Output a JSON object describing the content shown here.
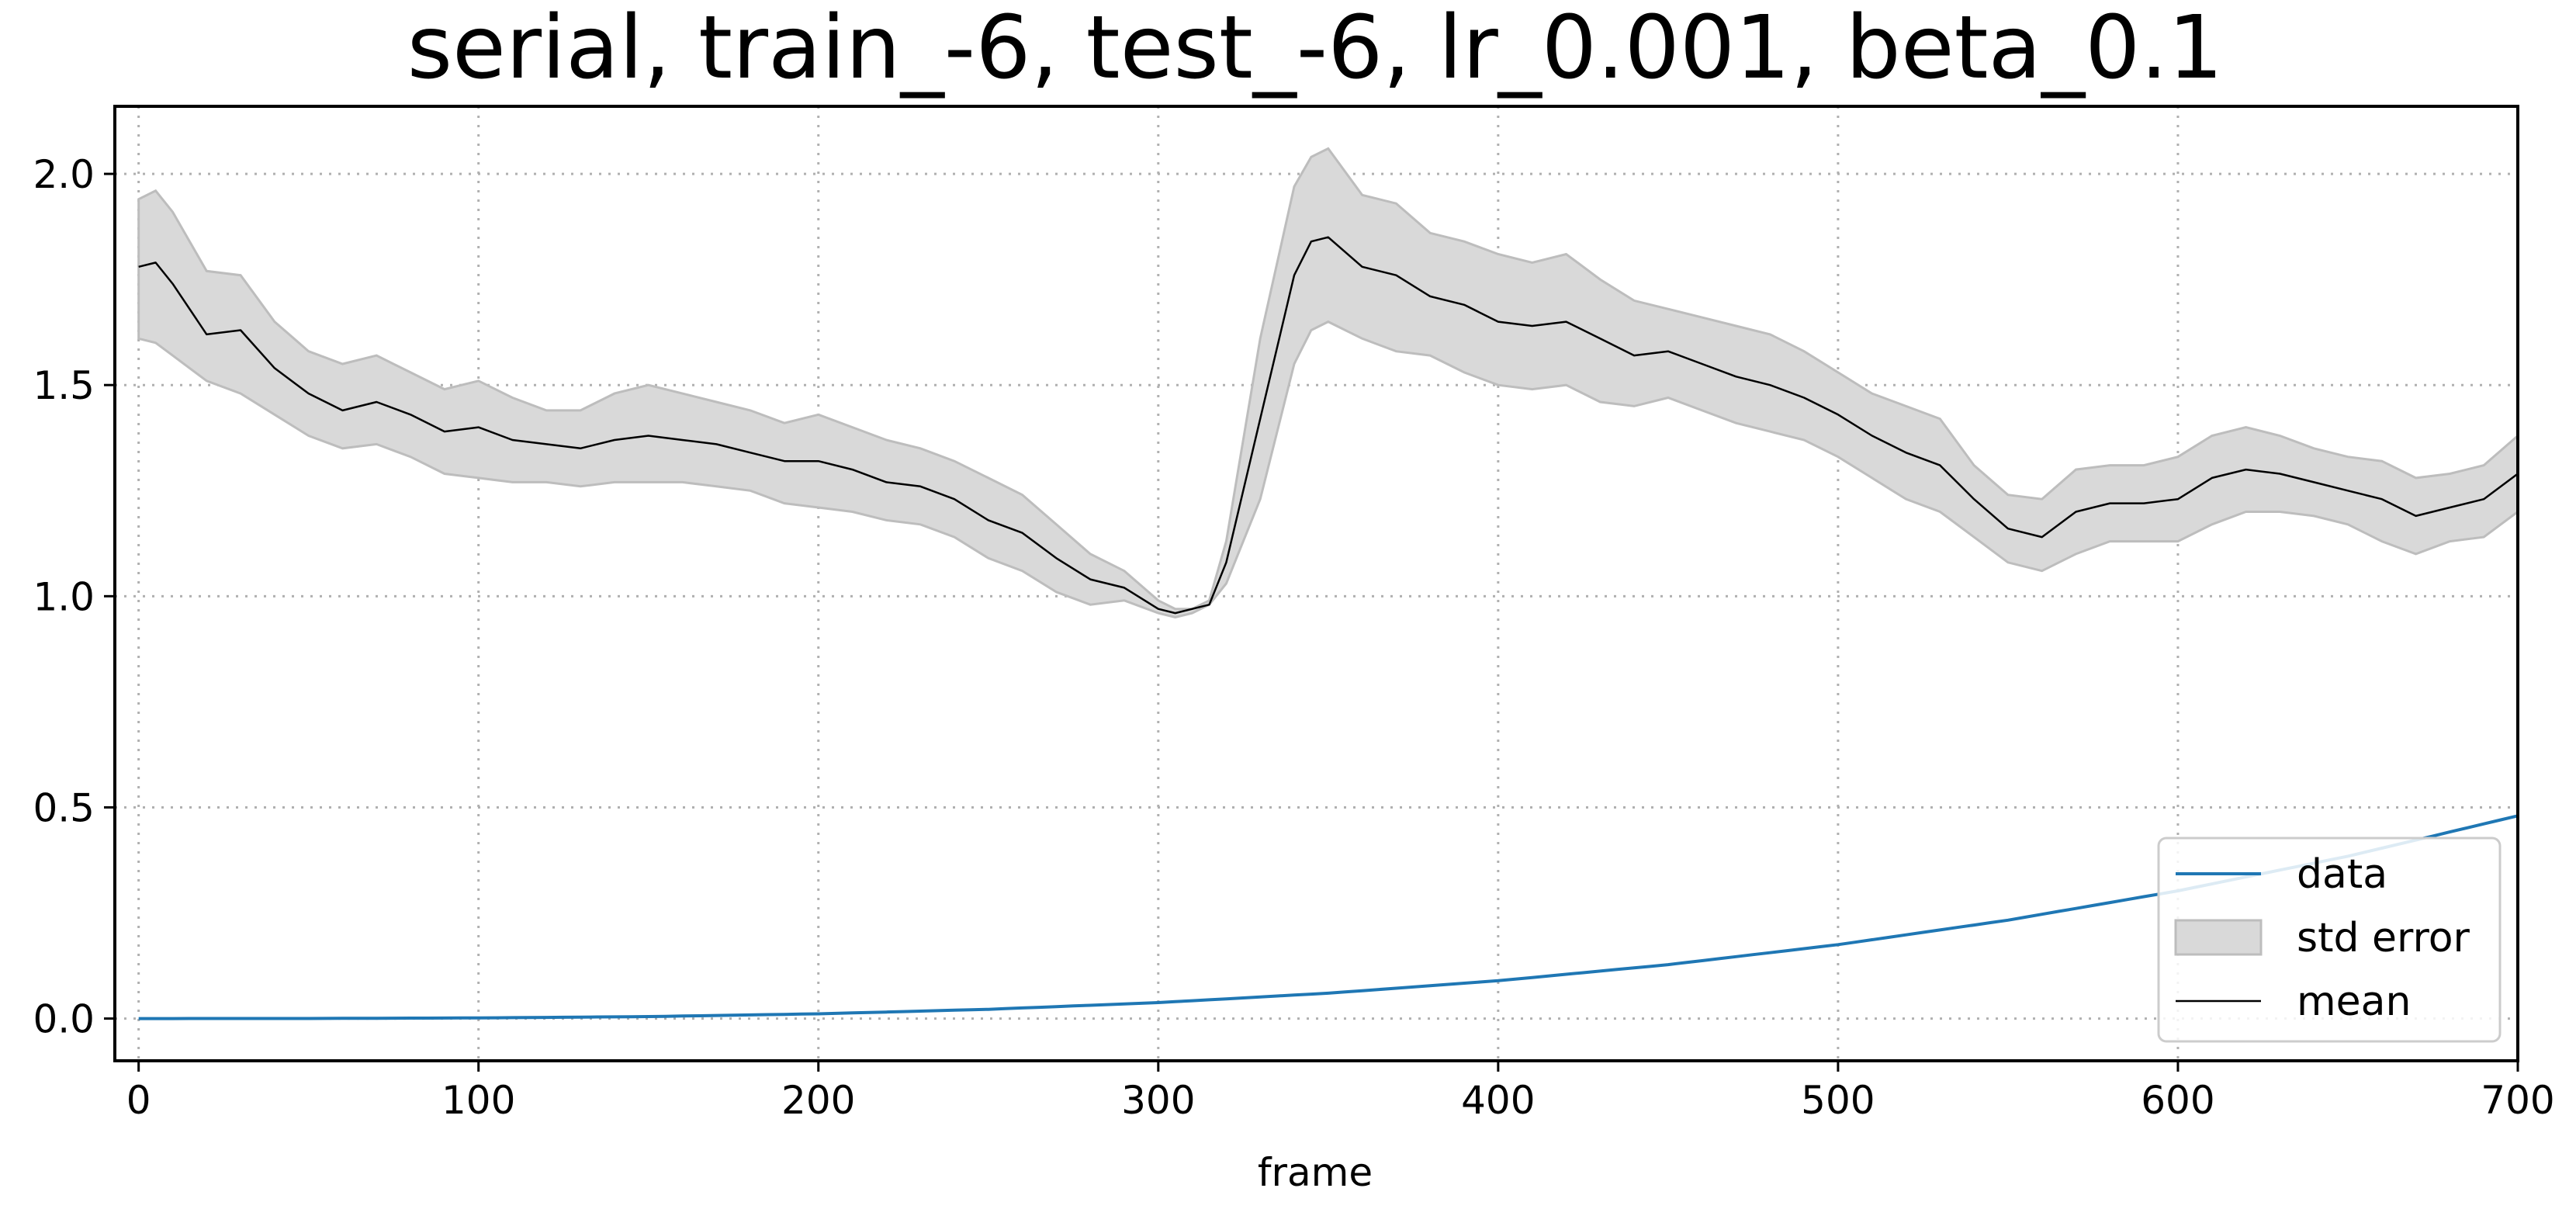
{
  "chart_data": {
    "type": "line",
    "title": "serial, train_-6, test_-6, lr_0.001, beta_0.1",
    "xlabel": "frame",
    "ylabel": "",
    "xlim": [
      -7,
      700
    ],
    "ylim": [
      -0.1,
      2.16
    ],
    "xticks": [
      0,
      100,
      200,
      300,
      400,
      500,
      600,
      700
    ],
    "yticks": [
      0.0,
      0.5,
      1.0,
      1.5,
      2.0
    ],
    "xtick_labels": [
      "0",
      "100",
      "200",
      "300",
      "400",
      "500",
      "600",
      "700"
    ],
    "ytick_labels": [
      "0.0",
      "0.5",
      "1.0",
      "1.5",
      "2.0"
    ],
    "grid": true,
    "legend_position": "lower-right",
    "series": [
      {
        "name": "data",
        "kind": "line",
        "color": "#1f77b4",
        "x": [
          0,
          50,
          100,
          150,
          200,
          250,
          300,
          350,
          400,
          450,
          500,
          550,
          600,
          650,
          700
        ],
        "y": [
          0.0,
          0.0002,
          0.0015,
          0.0047,
          0.0112,
          0.0219,
          0.0378,
          0.06,
          0.0896,
          0.1276,
          0.175,
          0.233,
          0.3024,
          0.3844,
          0.48
        ]
      },
      {
        "name": "std error",
        "kind": "band",
        "color": "#d9d9d9",
        "x": [
          0,
          5,
          10,
          20,
          30,
          40,
          50,
          60,
          70,
          80,
          90,
          100,
          110,
          120,
          130,
          140,
          150,
          160,
          170,
          180,
          190,
          200,
          210,
          220,
          230,
          240,
          250,
          260,
          270,
          280,
          290,
          300,
          305,
          310,
          315,
          320,
          330,
          340,
          345,
          350,
          360,
          370,
          380,
          390,
          400,
          410,
          420,
          430,
          440,
          450,
          460,
          470,
          480,
          490,
          500,
          510,
          520,
          530,
          540,
          550,
          560,
          570,
          580,
          590,
          600,
          610,
          620,
          630,
          640,
          650,
          660,
          670,
          680,
          690,
          700
        ],
        "lower": [
          1.61,
          1.6,
          1.57,
          1.51,
          1.48,
          1.43,
          1.38,
          1.35,
          1.36,
          1.33,
          1.29,
          1.28,
          1.27,
          1.27,
          1.26,
          1.27,
          1.27,
          1.27,
          1.26,
          1.25,
          1.22,
          1.21,
          1.2,
          1.18,
          1.17,
          1.14,
          1.09,
          1.06,
          1.01,
          0.98,
          0.99,
          0.96,
          0.95,
          0.96,
          0.98,
          1.03,
          1.23,
          1.55,
          1.63,
          1.65,
          1.61,
          1.58,
          1.57,
          1.53,
          1.5,
          1.49,
          1.5,
          1.46,
          1.45,
          1.47,
          1.44,
          1.41,
          1.39,
          1.37,
          1.33,
          1.28,
          1.23,
          1.2,
          1.14,
          1.08,
          1.06,
          1.1,
          1.13,
          1.13,
          1.13,
          1.17,
          1.2,
          1.2,
          1.19,
          1.17,
          1.13,
          1.1,
          1.13,
          1.14,
          1.2
        ],
        "upper": [
          1.94,
          1.96,
          1.91,
          1.77,
          1.76,
          1.65,
          1.58,
          1.55,
          1.57,
          1.53,
          1.49,
          1.51,
          1.47,
          1.44,
          1.44,
          1.48,
          1.5,
          1.48,
          1.46,
          1.44,
          1.41,
          1.43,
          1.4,
          1.37,
          1.35,
          1.32,
          1.28,
          1.24,
          1.17,
          1.1,
          1.06,
          0.99,
          0.97,
          0.97,
          0.99,
          1.13,
          1.61,
          1.97,
          2.04,
          2.06,
          1.95,
          1.93,
          1.86,
          1.84,
          1.81,
          1.79,
          1.81,
          1.75,
          1.7,
          1.68,
          1.66,
          1.64,
          1.62,
          1.58,
          1.53,
          1.48,
          1.45,
          1.42,
          1.31,
          1.24,
          1.23,
          1.3,
          1.31,
          1.31,
          1.33,
          1.38,
          1.4,
          1.38,
          1.35,
          1.33,
          1.32,
          1.28,
          1.29,
          1.31,
          1.38
        ]
      },
      {
        "name": "mean",
        "kind": "line",
        "color": "#000000",
        "x": [
          0,
          5,
          10,
          20,
          30,
          40,
          50,
          60,
          70,
          80,
          90,
          100,
          110,
          120,
          130,
          140,
          150,
          160,
          170,
          180,
          190,
          200,
          210,
          220,
          230,
          240,
          250,
          260,
          270,
          280,
          290,
          300,
          305,
          310,
          315,
          320,
          330,
          340,
          345,
          350,
          360,
          370,
          380,
          390,
          400,
          410,
          420,
          430,
          440,
          450,
          460,
          470,
          480,
          490,
          500,
          510,
          520,
          530,
          540,
          550,
          560,
          570,
          580,
          590,
          600,
          610,
          620,
          630,
          640,
          650,
          660,
          670,
          680,
          690,
          700
        ],
        "y": [
          1.78,
          1.79,
          1.74,
          1.62,
          1.63,
          1.54,
          1.48,
          1.44,
          1.46,
          1.43,
          1.39,
          1.4,
          1.37,
          1.36,
          1.35,
          1.37,
          1.38,
          1.37,
          1.36,
          1.34,
          1.32,
          1.32,
          1.3,
          1.27,
          1.26,
          1.23,
          1.18,
          1.15,
          1.09,
          1.04,
          1.02,
          0.97,
          0.96,
          0.97,
          0.98,
          1.08,
          1.42,
          1.76,
          1.84,
          1.85,
          1.78,
          1.76,
          1.71,
          1.69,
          1.65,
          1.64,
          1.65,
          1.61,
          1.57,
          1.58,
          1.55,
          1.52,
          1.5,
          1.47,
          1.43,
          1.38,
          1.34,
          1.31,
          1.23,
          1.16,
          1.14,
          1.2,
          1.22,
          1.22,
          1.23,
          1.28,
          1.3,
          1.29,
          1.27,
          1.25,
          1.23,
          1.19,
          1.21,
          1.23,
          1.29
        ]
      }
    ]
  }
}
